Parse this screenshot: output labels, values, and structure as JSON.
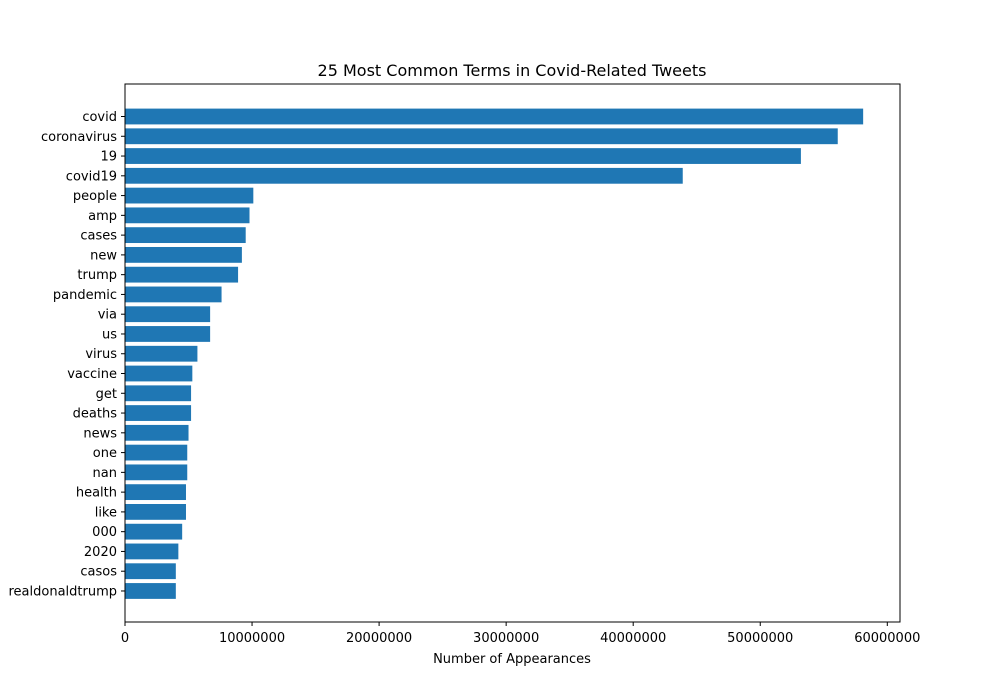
{
  "chart_data": {
    "type": "bar",
    "orientation": "horizontal",
    "title": "25 Most Common Terms in Covid-Related Tweets",
    "xlabel": "Number of Appearances",
    "ylabel": "",
    "xlim": [
      0,
      61000000
    ],
    "xticks": [
      0,
      10000000,
      20000000,
      30000000,
      40000000,
      50000000,
      60000000
    ],
    "xtick_labels": [
      "0",
      "10000000",
      "20000000",
      "30000000",
      "40000000",
      "50000000",
      "60000000"
    ],
    "bar_color": "#1f77b4",
    "grid": false,
    "categories": [
      "covid",
      "coronavirus",
      "19",
      "covid19",
      "people",
      "amp",
      "cases",
      "new",
      "trump",
      "pandemic",
      "via",
      "us",
      "virus",
      "vaccine",
      "get",
      "deaths",
      "news",
      "one",
      "nan",
      "health",
      "like",
      "000",
      "2020",
      "casos",
      "realdonaldtrump"
    ],
    "values": [
      58100000,
      56100000,
      53200000,
      43900000,
      10100000,
      9800000,
      9500000,
      9200000,
      8900000,
      7600000,
      6700000,
      6700000,
      5700000,
      5300000,
      5200000,
      5200000,
      5000000,
      4900000,
      4900000,
      4800000,
      4800000,
      4500000,
      4200000,
      4000000,
      4000000
    ]
  }
}
